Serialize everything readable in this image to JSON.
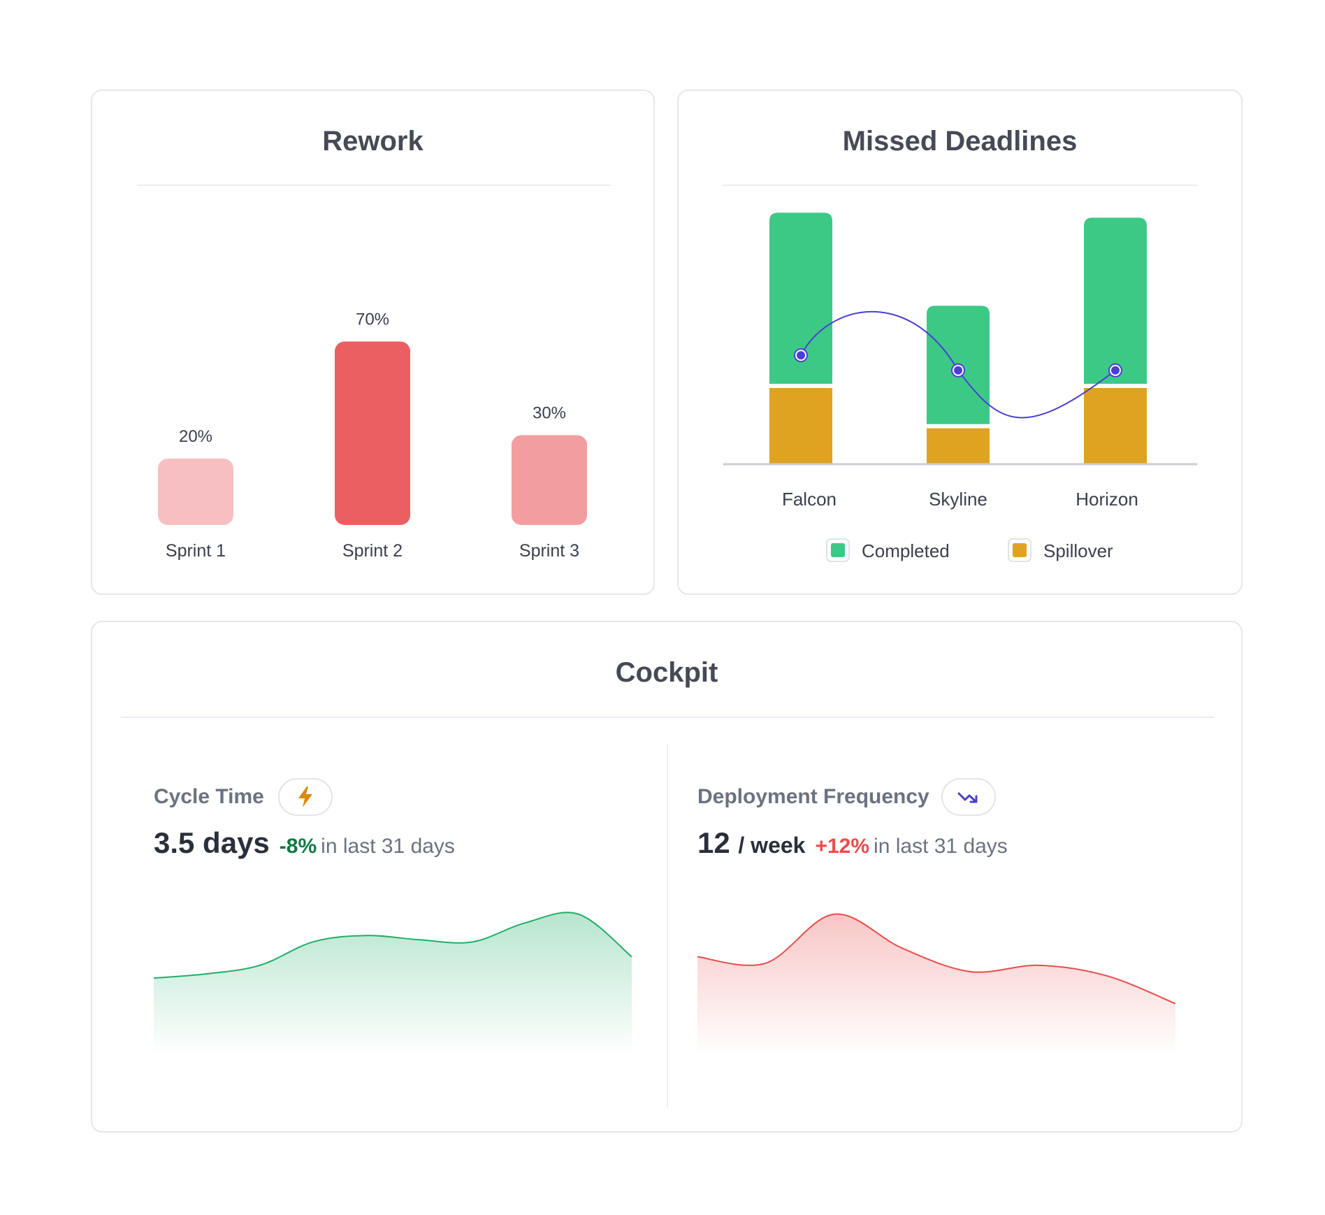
{
  "colors": {
    "rework_light": "#f7bfc1",
    "rework_strong": "#ec5f61",
    "rework_mid": "#f39e9e",
    "completed": "#3cc986",
    "spillover": "#e0a221",
    "trend_line": "#4a3fd4",
    "positive": "#0f7a43",
    "negative": "#ea4c4c"
  },
  "rework": {
    "title": "Rework",
    "chart_data": {
      "type": "bar",
      "title": "Rework",
      "categories": [
        "Sprint 1",
        "Sprint 2",
        "Sprint 3"
      ],
      "values": [
        20,
        70,
        30
      ],
      "value_labels": [
        "20%",
        "70%",
        "30%"
      ],
      "ylim": [
        0,
        80
      ]
    }
  },
  "missed_deadlines": {
    "title": "Missed Deadlines",
    "legend": [
      {
        "label": "Completed",
        "color": "#3cc986"
      },
      {
        "label": "Spillover",
        "color": "#e0a221"
      }
    ],
    "chart_data": {
      "type": "bar",
      "stacked": true,
      "title": "Missed Deadlines",
      "categories": [
        "Falcon",
        "Skyline",
        "Horizon"
      ],
      "series": [
        {
          "name": "Spillover",
          "values": [
            3.0,
            1.4,
            3.0
          ]
        },
        {
          "name": "Completed",
          "values": [
            6.8,
            4.7,
            6.6
          ]
        }
      ],
      "trend": {
        "name": "Trend",
        "values": [
          4.3,
          3.7,
          3.7
        ]
      },
      "ylim": [
        0,
        10
      ]
    }
  },
  "cockpit": {
    "title": "Cockpit",
    "cycle_time": {
      "title": "Cycle Time",
      "icon": "lightning-icon",
      "value": "3.5 days",
      "delta": "-8%",
      "delta_text": "in last 31 days",
      "chart_data": {
        "type": "area",
        "title": "Cycle Time",
        "values": [
          2.0,
          2.2,
          2.6,
          3.7,
          4.0,
          3.8,
          3.7,
          4.6,
          5.0,
          3.0
        ],
        "ylim": [
          0,
          6
        ]
      }
    },
    "deployment_frequency": {
      "title": "Deployment Frequency",
      "icon": "trend-down-icon",
      "value": "12",
      "value_unit": "/ week",
      "delta": "+12%",
      "delta_text": "in last 31 days",
      "chart_data": {
        "type": "area",
        "title": "Deployment Frequency",
        "values": [
          3.0,
          2.7,
          5.0,
          3.4,
          2.3,
          2.6,
          2.1,
          0.8
        ],
        "ylim": [
          0,
          6
        ]
      }
    }
  }
}
